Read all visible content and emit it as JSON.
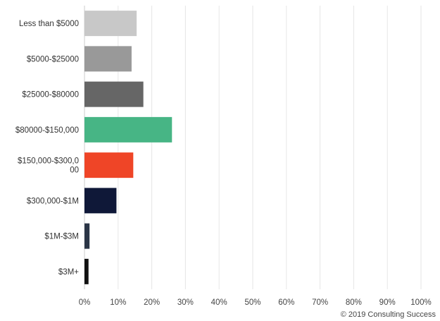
{
  "chart_data": {
    "type": "bar",
    "orientation": "horizontal",
    "categories": [
      [
        "Less than $5000"
      ],
      [
        "$5000-$25000"
      ],
      [
        "$25000-$80000"
      ],
      [
        "$80000-$150,000"
      ],
      [
        "$150,000-$300,0",
        "00"
      ],
      [
        "$300,000-$1M"
      ],
      [
        "$1M-$3M"
      ],
      [
        "$3M+"
      ]
    ],
    "values": [
      15.5,
      14,
      17.5,
      26,
      14.5,
      9.5,
      1.5,
      1.2
    ],
    "colors": [
      "#c8c8c8",
      "#999999",
      "#666666",
      "#47b585",
      "#ef4527",
      "#0f1838",
      "#2b3546",
      "#111111"
    ],
    "xlim": [
      0,
      100
    ],
    "xticks": [
      "0%",
      "10%",
      "20%",
      "30%",
      "40%",
      "50%",
      "60%",
      "70%",
      "80%",
      "90%",
      "100%"
    ],
    "grid": true
  },
  "credit": "© 2019 Consulting Success"
}
